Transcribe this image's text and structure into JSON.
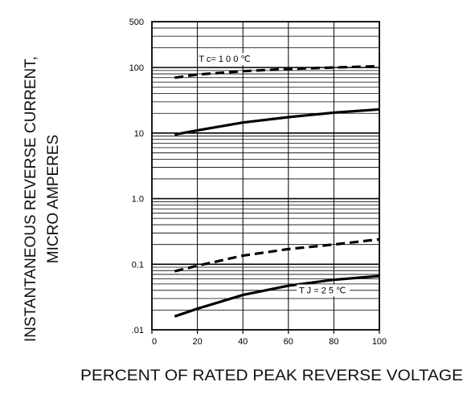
{
  "chart_data": {
    "type": "line",
    "title": "",
    "ylabel": "INSTANTANEOUS REVERSE CURRENT,",
    "ylabel2": "MICRO AMPERES",
    "xlabel": "PERCENT OF RATED PEAK REVERSE VOLTAGE",
    "x_scale": "linear",
    "y_scale": "log",
    "xlim": [
      0,
      100
    ],
    "ylim": [
      0.01,
      500
    ],
    "x_ticks": [
      "0",
      "20",
      "40",
      "60",
      "80",
      "100"
    ],
    "y_ticks": [
      ".01",
      "0.1",
      "1.0",
      "10",
      "100",
      "500"
    ],
    "grid": true,
    "series": [
      {
        "style": "dashed",
        "x": [
          10,
          20,
          40,
          60,
          80,
          100
        ],
        "y": [
          70,
          78,
          88,
          95,
          100,
          105
        ]
      },
      {
        "style": "solid",
        "x": [
          10,
          20,
          40,
          60,
          80,
          100
        ],
        "y": [
          9.5,
          11,
          14.5,
          17.5,
          20.5,
          23
        ]
      },
      {
        "style": "dashed",
        "x": [
          10,
          20,
          40,
          60,
          80,
          100
        ],
        "y": [
          0.078,
          0.095,
          0.135,
          0.17,
          0.2,
          0.24
        ]
      },
      {
        "style": "solid",
        "x": [
          10,
          20,
          40,
          60,
          80,
          100
        ],
        "y": [
          0.016,
          0.021,
          0.034,
          0.047,
          0.058,
          0.066
        ]
      }
    ],
    "annotations": [
      {
        "text": "T c= 1 0 0 ℃",
        "x": 32,
        "y": 122
      },
      {
        "text": "T J = 2 5 ℃",
        "x": 75,
        "y": 0.036
      }
    ]
  }
}
